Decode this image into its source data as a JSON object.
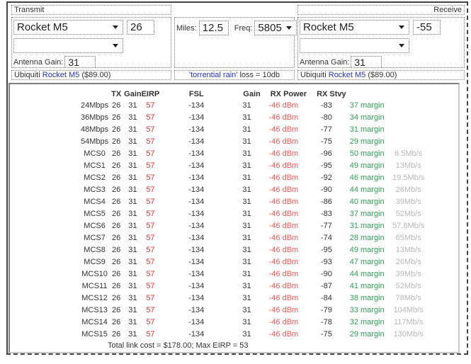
{
  "colors": {
    "eirp_red": "#dd3333",
    "rx_power_red": "#ff5555",
    "margin_green": "#2fa055",
    "rate_gray": "#b8b8b8",
    "link_blue": "#2233cc"
  },
  "transmit": {
    "panel_label": "Transmit",
    "device": "Rocket M5",
    "power_dbm": "26",
    "antenna_value": "",
    "antenna_gain_label": "Antenna Gain:",
    "antenna_gain": "31",
    "brand": "Ubiquiti",
    "device_link": "Rocket M5",
    "price": "($89.00)"
  },
  "path": {
    "miles_label": "Miles:",
    "miles_value": "12.5",
    "freq_label": "Freq:",
    "freq_value": "5805",
    "rain_link": "'torrential rain'",
    "rain_text": "loss = 10db"
  },
  "receive": {
    "panel_label": "Receive",
    "device": "Rocket M5",
    "sensitivity_dbm": "-55",
    "antenna_value": "",
    "antenna_gain_label": "Antenna Gain:",
    "antenna_gain": "31",
    "brand": "Ubiquiti",
    "device_link": "Rocket M5",
    "price": "($89.00)"
  },
  "table": {
    "headers": {
      "tx": "TX",
      "gain": "Gain",
      "eirp": "EIRP",
      "fsl": "FSL",
      "rx_gain": "Gain",
      "rx_power": "RX Power",
      "rx_stvy": "RX Stvy"
    },
    "rows": [
      [
        "24Mbps",
        "26",
        "31",
        "57",
        "-134",
        "31",
        "-46 dBm",
        "-83",
        "37 margin",
        ""
      ],
      [
        "36Mbps",
        "26",
        "31",
        "57",
        "-134",
        "31",
        "-46 dBm",
        "-80",
        "34 margin",
        ""
      ],
      [
        "48Mbps",
        "26",
        "31",
        "57",
        "-134",
        "31",
        "-46 dBm",
        "-77",
        "31 margin",
        ""
      ],
      [
        "54Mbps",
        "26",
        "31",
        "57",
        "-134",
        "31",
        "-46 dBm",
        "-75",
        "29 margin",
        ""
      ],
      [
        "MCS0",
        "26",
        "31",
        "57",
        "-134",
        "31",
        "-46 dBm",
        "-96",
        "50 margin",
        "6.5Mb/s"
      ],
      [
        "MCS1",
        "26",
        "31",
        "57",
        "-134",
        "31",
        "-46 dBm",
        "-95",
        "49 margin",
        "13Mb/s"
      ],
      [
        "MCS2",
        "26",
        "31",
        "57",
        "-134",
        "31",
        "-46 dBm",
        "-92",
        "46 margin",
        "19.5Mb/s"
      ],
      [
        "MCS3",
        "26",
        "31",
        "57",
        "-134",
        "31",
        "-46 dBm",
        "-90",
        "44 margin",
        "26Mb/s"
      ],
      [
        "MCS4",
        "26",
        "31",
        "57",
        "-134",
        "31",
        "-46 dBm",
        "-86",
        "40 margin",
        "39Mb/s"
      ],
      [
        "MCS5",
        "26",
        "31",
        "57",
        "-134",
        "31",
        "-46 dBm",
        "-83",
        "37 margin",
        "52Mb/s"
      ],
      [
        "MCS6",
        "26",
        "31",
        "57",
        "-134",
        "31",
        "-46 dBm",
        "-77",
        "31 margin",
        "57.8Mb/s"
      ],
      [
        "MCS7",
        "26",
        "31",
        "57",
        "-134",
        "31",
        "-46 dBm",
        "-74",
        "28 margin",
        "65Mb/s"
      ],
      [
        "MCS8",
        "26",
        "31",
        "57",
        "-134",
        "31",
        "-46 dBm",
        "-95",
        "49 margin",
        "13Mb/s"
      ],
      [
        "MCS9",
        "26",
        "31",
        "57",
        "-134",
        "31",
        "-46 dBm",
        "-93",
        "47 margin",
        "26Mb/s"
      ],
      [
        "MCS10",
        "26",
        "31",
        "57",
        "-134",
        "31",
        "-46 dBm",
        "-90",
        "44 margin",
        "39Mb/s"
      ],
      [
        "MCS11",
        "26",
        "31",
        "57",
        "-134",
        "31",
        "-46 dBm",
        "-87",
        "41 margin",
        "52Mb/s"
      ],
      [
        "MCS12",
        "26",
        "31",
        "57",
        "-134",
        "31",
        "-46 dBm",
        "-84",
        "38 margin",
        "78Mb/s"
      ],
      [
        "MCS13",
        "26",
        "31",
        "57",
        "-134",
        "31",
        "-46 dBm",
        "-79",
        "33 margin",
        "104Mb/s"
      ],
      [
        "MCS14",
        "26",
        "31",
        "57",
        "-134",
        "31",
        "-46 dBm",
        "-78",
        "32 margin",
        "117Mb/s"
      ],
      [
        "MCS15",
        "26",
        "31",
        "57",
        "-134",
        "31",
        "-46 dBm",
        "-75",
        "29 margin",
        "130Mb/s"
      ]
    ],
    "footer": "Total link cost = $178.00; Max EIRP = 53"
  }
}
